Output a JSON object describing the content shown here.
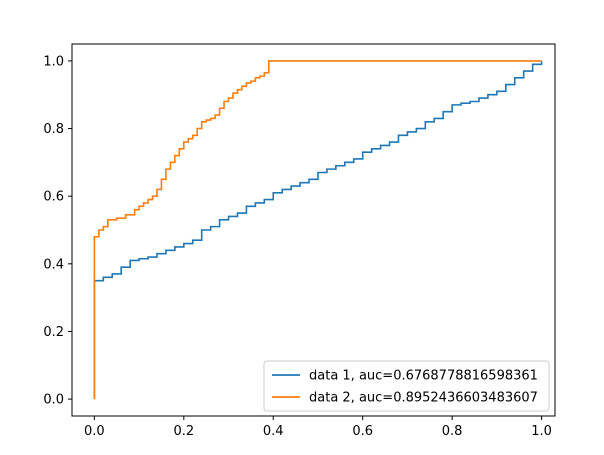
{
  "chart_data": {
    "type": "line",
    "title": "",
    "xlabel": "",
    "ylabel": "",
    "xlim": [
      -0.05,
      1.03
    ],
    "ylim": [
      -0.05,
      1.05
    ],
    "xticks": [
      0.0,
      0.2,
      0.4,
      0.6,
      0.8,
      1.0
    ],
    "yticks": [
      0.0,
      0.2,
      0.4,
      0.6,
      0.8,
      1.0
    ],
    "xtick_labels": [
      "0.0",
      "0.2",
      "0.4",
      "0.6",
      "0.8",
      "1.0"
    ],
    "ytick_labels": [
      "0.0",
      "0.2",
      "0.4",
      "0.6",
      "0.8",
      "1.0"
    ],
    "grid": false,
    "legend_position": "lower-right",
    "series": [
      {
        "name": "data 1, auc=0.6768778816598361",
        "color": "#1f77b4",
        "x": [
          0.0,
          0.0,
          0.02,
          0.04,
          0.06,
          0.08,
          0.1,
          0.12,
          0.14,
          0.16,
          0.18,
          0.2,
          0.22,
          0.24,
          0.26,
          0.28,
          0.3,
          0.32,
          0.34,
          0.36,
          0.38,
          0.4,
          0.42,
          0.44,
          0.46,
          0.48,
          0.5,
          0.52,
          0.54,
          0.56,
          0.58,
          0.6,
          0.62,
          0.64,
          0.66,
          0.68,
          0.7,
          0.72,
          0.74,
          0.76,
          0.78,
          0.8,
          0.82,
          0.84,
          0.86,
          0.88,
          0.9,
          0.92,
          0.94,
          0.96,
          0.98,
          1.0
        ],
        "y": [
          0.0,
          0.35,
          0.36,
          0.37,
          0.39,
          0.41,
          0.415,
          0.42,
          0.43,
          0.44,
          0.45,
          0.46,
          0.47,
          0.5,
          0.51,
          0.53,
          0.54,
          0.55,
          0.57,
          0.58,
          0.59,
          0.61,
          0.62,
          0.63,
          0.64,
          0.65,
          0.67,
          0.68,
          0.69,
          0.7,
          0.71,
          0.73,
          0.74,
          0.75,
          0.76,
          0.78,
          0.79,
          0.8,
          0.82,
          0.83,
          0.85,
          0.87,
          0.875,
          0.88,
          0.89,
          0.9,
          0.91,
          0.93,
          0.95,
          0.97,
          0.99,
          1.0
        ]
      },
      {
        "name": "data 2, auc=0.8952436603483607",
        "color": "#ff7f0e",
        "x": [
          0.0,
          0.0,
          0.01,
          0.02,
          0.03,
          0.05,
          0.07,
          0.09,
          0.1,
          0.11,
          0.12,
          0.13,
          0.14,
          0.15,
          0.16,
          0.17,
          0.18,
          0.19,
          0.2,
          0.21,
          0.22,
          0.23,
          0.24,
          0.25,
          0.26,
          0.27,
          0.28,
          0.29,
          0.3,
          0.31,
          0.32,
          0.33,
          0.34,
          0.35,
          0.36,
          0.37,
          0.38,
          0.39,
          0.39,
          0.4,
          1.0
        ],
        "y": [
          0.0,
          0.48,
          0.5,
          0.51,
          0.53,
          0.535,
          0.545,
          0.56,
          0.57,
          0.58,
          0.59,
          0.6,
          0.62,
          0.65,
          0.68,
          0.7,
          0.72,
          0.74,
          0.76,
          0.77,
          0.78,
          0.8,
          0.82,
          0.825,
          0.83,
          0.84,
          0.86,
          0.88,
          0.89,
          0.905,
          0.915,
          0.925,
          0.935,
          0.94,
          0.95,
          0.955,
          0.965,
          0.98,
          1.0,
          1.0,
          1.0
        ]
      }
    ]
  }
}
